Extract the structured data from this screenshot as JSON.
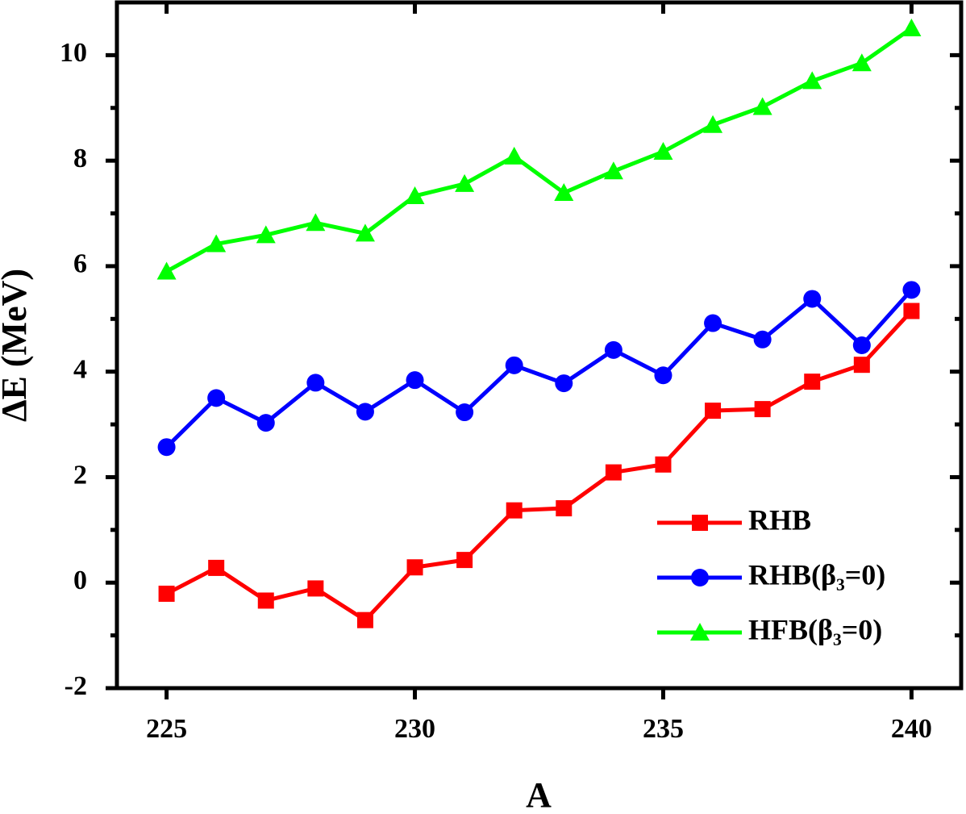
{
  "chart_data": {
    "type": "line",
    "xlabel": "A",
    "ylabel": "ΔE (MeV)",
    "x": [
      225,
      226,
      227,
      228,
      229,
      230,
      231,
      232,
      233,
      234,
      235,
      236,
      237,
      238,
      239,
      240
    ],
    "series": [
      {
        "name": "RHB",
        "color": "#ff0000",
        "marker": "square",
        "values": [
          -0.21,
          0.28,
          -0.34,
          -0.11,
          -0.71,
          0.29,
          0.43,
          1.37,
          1.41,
          2.09,
          2.24,
          3.26,
          3.29,
          3.81,
          4.13,
          5.15
        ]
      },
      {
        "name": "RHB(β₃=0)",
        "color": "#0000ff",
        "marker": "circle",
        "values": [
          2.57,
          3.5,
          3.03,
          3.79,
          3.24,
          3.84,
          3.23,
          4.12,
          3.78,
          4.41,
          3.93,
          4.92,
          4.61,
          5.38,
          4.5,
          5.55
        ]
      },
      {
        "name": "HFB(β₃=0)",
        "color": "#00ff00",
        "marker": "triangle",
        "values": [
          5.9,
          6.42,
          6.59,
          6.82,
          6.62,
          7.33,
          7.56,
          8.08,
          7.39,
          7.8,
          8.17,
          8.68,
          9.02,
          9.51,
          9.85,
          10.51
        ]
      }
    ],
    "xlim": [
      224,
      241
    ],
    "xticks": [
      225,
      230,
      235,
      240
    ],
    "ylim": [
      -2,
      11
    ],
    "yticks": [
      -2,
      0,
      2,
      4,
      6,
      8,
      10
    ],
    "yminorticks": [
      -1,
      1,
      3,
      5,
      7,
      9
    ],
    "legend": "lower right"
  }
}
